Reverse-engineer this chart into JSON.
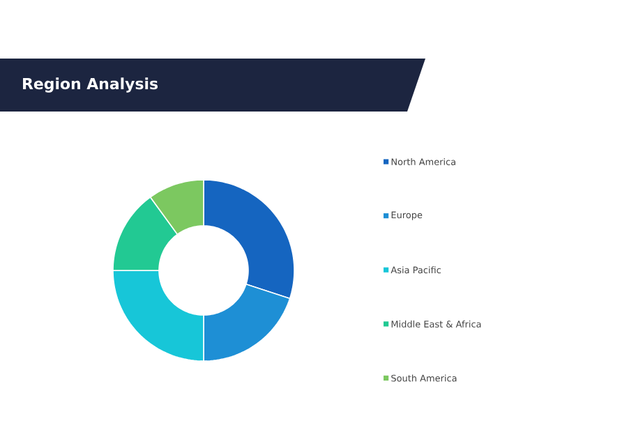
{
  "chart_data": {
    "type": "donut",
    "title": "Region Analysis",
    "categories": [
      "North America",
      "Europe",
      "Asia Pacific",
      "Middle East & Africa",
      "South America"
    ],
    "values": [
      30,
      20,
      25,
      15,
      10
    ],
    "colors": [
      "#1565c0",
      "#1e8fd5",
      "#17c6d8",
      "#22c993",
      "#7cc860"
    ],
    "legend": "right"
  }
}
